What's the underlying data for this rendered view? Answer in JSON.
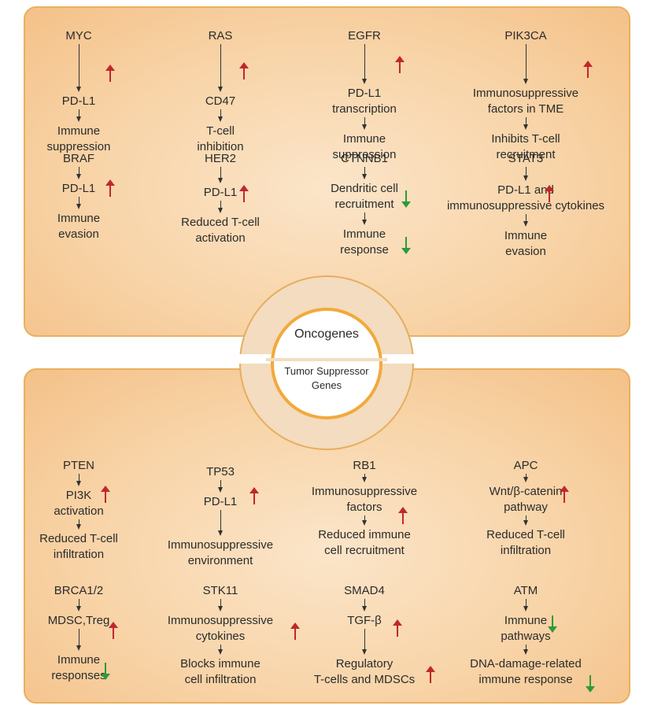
{
  "center": {
    "oncogenes": "Oncogenes",
    "suppressor_line1": "Tumor Suppressor",
    "suppressor_line2": "Genes"
  },
  "colors": {
    "up_arrow": "#c0272d",
    "down_arrow": "#2e9a3a",
    "panel_border": "#eab05e",
    "ring_accent": "#f2a93b"
  },
  "oncogenes": [
    {
      "gene": "MYC",
      "steps": [
        [
          "PD-L1"
        ],
        [
          "Immune",
          "suppression"
        ]
      ],
      "indicators": [
        "up",
        null
      ]
    },
    {
      "gene": "RAS",
      "steps": [
        [
          "CD47"
        ],
        [
          "T-cell",
          "inhibition"
        ]
      ],
      "indicators": [
        "up",
        null
      ]
    },
    {
      "gene": "EGFR",
      "steps": [
        [
          "PD-L1",
          "transcription"
        ],
        [
          "Immune",
          "suppression"
        ]
      ],
      "indicators": [
        "up",
        null
      ]
    },
    {
      "gene": "PIK3CA",
      "steps": [
        [
          "Immunosuppressive",
          "factors in TME"
        ],
        [
          "Inhibits T-cell",
          "recruitment"
        ]
      ],
      "indicators": [
        "up",
        null
      ]
    },
    {
      "gene": "BRAF",
      "steps": [
        [
          "PD-L1"
        ],
        [
          "Immune",
          "evasion"
        ]
      ],
      "indicators": [
        "up",
        null
      ]
    },
    {
      "gene": "HER2",
      "steps": [
        [
          "PD-L1"
        ],
        [
          "Reduced T-cell",
          "activation"
        ]
      ],
      "indicators": [
        "up",
        null
      ]
    },
    {
      "gene": "CTNNB1",
      "steps": [
        [
          "Dendritic cell",
          "recruitment"
        ],
        [
          "Immune",
          "response"
        ]
      ],
      "indicators": [
        "down",
        "down"
      ]
    },
    {
      "gene": "STAT3",
      "steps": [
        [
          "PD-L1 and",
          "immunosuppressive cytokines"
        ],
        [
          "Immune",
          "evasion"
        ]
      ],
      "indicators": [
        "up",
        null
      ]
    }
  ],
  "suppressors": [
    {
      "gene": "PTEN",
      "steps": [
        [
          "PI3K",
          "activation"
        ],
        [
          "Reduced T-cell",
          "infiltration"
        ]
      ],
      "indicators": [
        "up",
        null
      ]
    },
    {
      "gene": "TP53",
      "steps": [
        [
          "PD-L1"
        ],
        [
          "Immunosuppressive",
          "environment"
        ]
      ],
      "indicators": [
        "up",
        null
      ]
    },
    {
      "gene": "RB1",
      "steps": [
        [
          "Immunosuppressive",
          "factors"
        ],
        [
          "Reduced immune",
          "cell recruitment"
        ]
      ],
      "indicators": [
        "up",
        null
      ]
    },
    {
      "gene": "APC",
      "steps": [
        [
          "Wnt/β-catenin",
          "pathway"
        ],
        [
          "Reduced T-cell",
          "infiltration"
        ]
      ],
      "indicators": [
        "up",
        null
      ]
    },
    {
      "gene": "BRCA1/2",
      "steps": [
        [
          "MDSC,Treg"
        ],
        [
          "Immune",
          "responses"
        ]
      ],
      "indicators": [
        "up",
        "down"
      ]
    },
    {
      "gene": "STK11",
      "steps": [
        [
          "Immunosuppressive",
          "cytokines"
        ],
        [
          "Blocks immune",
          "cell infiltration"
        ]
      ],
      "indicators": [
        "up",
        null
      ]
    },
    {
      "gene": "SMAD4",
      "steps": [
        [
          "TGF-β"
        ],
        [
          "Regulatory",
          "T-cells and MDSCs"
        ]
      ],
      "indicators": [
        "up",
        "up"
      ]
    },
    {
      "gene": "ATM",
      "steps": [
        [
          "Immune",
          "pathways"
        ],
        [
          "DNA-damage-related",
          "immune response"
        ]
      ],
      "indicators": [
        "down",
        "down"
      ]
    }
  ]
}
